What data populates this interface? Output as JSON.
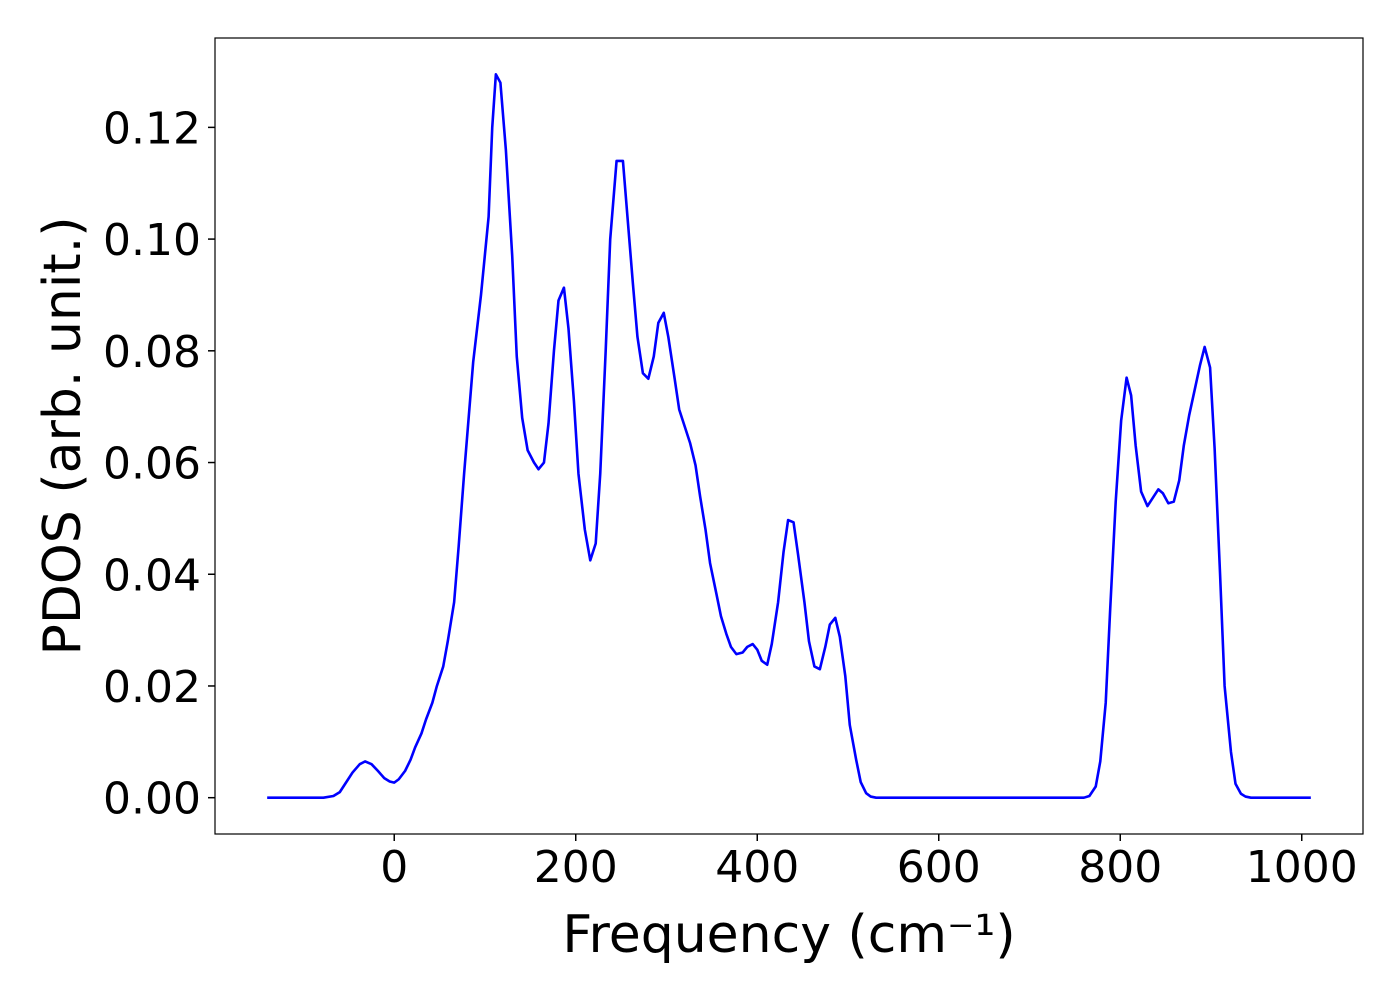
{
  "chart_data": {
    "type": "line",
    "xlabel": "Frequency (cm⁻¹)",
    "ylabel": "PDOS (arb. unit.)",
    "xlim": [
      -197.5,
      1067.5
    ],
    "ylim": [
      -0.0065,
      0.136
    ],
    "xticks": [
      0,
      200,
      400,
      600,
      800,
      1000
    ],
    "yticks": [
      {
        "value": 0,
        "label": "0.00"
      },
      {
        "value": 0.02,
        "label": "0.02"
      },
      {
        "value": 0.04,
        "label": "0.04"
      },
      {
        "value": 0.06,
        "label": "0.06"
      },
      {
        "value": 0.08,
        "label": "0.08"
      },
      {
        "value": 0.1,
        "label": "0.10"
      },
      {
        "value": 0.12,
        "label": "0.12"
      }
    ],
    "grid": false,
    "series": [
      {
        "color": "#0000ff",
        "x": [
          -140,
          -78,
          -67,
          -60,
          -54,
          -46,
          -38,
          -32,
          -25,
          -18,
          -11,
          -5,
          0,
          5,
          12,
          18,
          23,
          30,
          35,
          42,
          47,
          54,
          59,
          66,
          71,
          77,
          87,
          95.6,
          104,
          108,
          112,
          117,
          123,
          130,
          135,
          141,
          147,
          154,
          159,
          165,
          170,
          176,
          181,
          187,
          192,
          198,
          203,
          210,
          216,
          222,
          227,
          233,
          238,
          245,
          252,
          257,
          263,
          268,
          274,
          280,
          286,
          291,
          297,
          302,
          309,
          314,
          320,
          326,
          332,
          337,
          343,
          348,
          355,
          360,
          366,
          371,
          377,
          384,
          389,
          395,
          400,
          405,
          411,
          416,
          423,
          429,
          434,
          440,
          445,
          452,
          457,
          463,
          469,
          475,
          480,
          486,
          491,
          497,
          502,
          509,
          514,
          520,
          525,
          531,
          760,
          766,
          773,
          778,
          784,
          789,
          795,
          801,
          807,
          812,
          817,
          823,
          830,
          836,
          842,
          847,
          853,
          859,
          865,
          870,
          876,
          882,
          888,
          893,
          899,
          904,
          910,
          915,
          922,
          927,
          933,
          938,
          944,
          1010
        ],
        "values": [
          0,
          0,
          0.0003,
          0.001,
          0.0025,
          0.0045,
          0.006,
          0.0065,
          0.006,
          0.0048,
          0.0035,
          0.0029,
          0.0027,
          0.0033,
          0.0048,
          0.0068,
          0.009,
          0.0115,
          0.014,
          0.017,
          0.02,
          0.0235,
          0.028,
          0.035,
          0.045,
          0.058,
          0.078,
          0.09,
          0.104,
          0.12,
          0.1295,
          0.128,
          0.116,
          0.097,
          0.079,
          0.068,
          0.0622,
          0.06,
          0.0588,
          0.06,
          0.067,
          0.08,
          0.089,
          0.0913,
          0.084,
          0.071,
          0.058,
          0.048,
          0.0425,
          0.0455,
          0.058,
          0.08,
          0.1,
          0.114,
          0.114,
          0.104,
          0.092,
          0.0825,
          0.076,
          0.075,
          0.079,
          0.085,
          0.0868,
          0.0825,
          0.075,
          0.0695,
          0.0665,
          0.0635,
          0.0595,
          0.054,
          0.048,
          0.042,
          0.0365,
          0.0325,
          0.0293,
          0.027,
          0.0257,
          0.026,
          0.027,
          0.0275,
          0.0265,
          0.0245,
          0.0238,
          0.0275,
          0.035,
          0.044,
          0.0497,
          0.0493,
          0.0435,
          0.035,
          0.028,
          0.0235,
          0.023,
          0.027,
          0.031,
          0.0322,
          0.0288,
          0.0218,
          0.013,
          0.0068,
          0.0028,
          0.0008,
          0.0002,
          0,
          0,
          0.0003,
          0.002,
          0.0065,
          0.017,
          0.034,
          0.053,
          0.0675,
          0.0752,
          0.072,
          0.063,
          0.0548,
          0.0522,
          0.0537,
          0.0552,
          0.0545,
          0.0527,
          0.053,
          0.0568,
          0.063,
          0.0685,
          0.073,
          0.0775,
          0.0807,
          0.077,
          0.0625,
          0.04,
          0.02,
          0.0082,
          0.0025,
          0.0007,
          0.0002,
          0,
          0
        ]
      }
    ]
  }
}
